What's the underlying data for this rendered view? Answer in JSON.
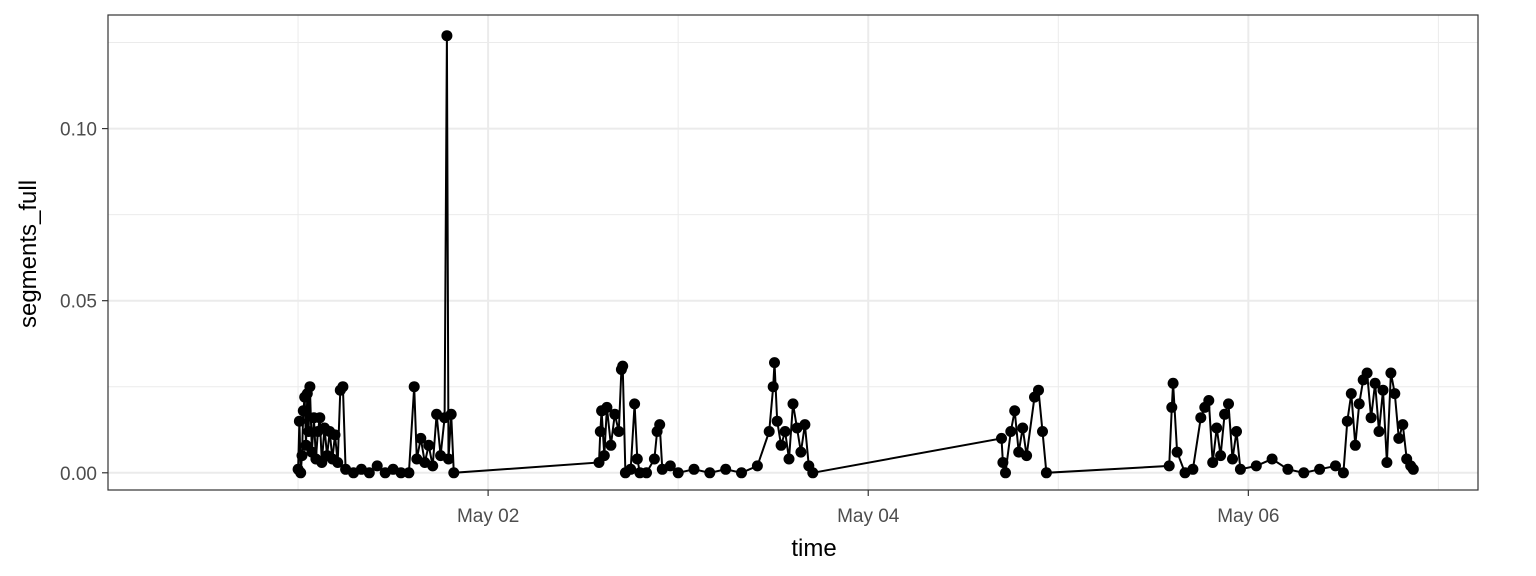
{
  "chart_data": {
    "type": "line",
    "title": "",
    "xlabel": "time",
    "ylabel": "segments_full",
    "x_type": "datetime",
    "xlim": [
      "2026-04-30T00:00",
      "2026-05-07T05:00"
    ],
    "ylim": [
      -0.005,
      0.133
    ],
    "x_ticks": [
      "2026-05-02T00:00",
      "2026-05-04T00:00",
      "2026-05-06T00:00"
    ],
    "x_tick_labels": [
      "May 02",
      "May 04",
      "May 06"
    ],
    "y_ticks": [
      0.0,
      0.05,
      0.1
    ],
    "y_tick_labels": [
      "0.00",
      "0.05",
      "0.10"
    ],
    "grid": true,
    "legend": "none",
    "series": [
      {
        "color": "#000000",
        "marker": "circle",
        "points": [
          [
            "2026-05-01T00:00",
            0.001
          ],
          [
            "2026-05-01T00:10",
            0.015
          ],
          [
            "2026-05-01T00:20",
            0.0
          ],
          [
            "2026-05-01T00:30",
            0.005
          ],
          [
            "2026-05-01T00:40",
            0.018
          ],
          [
            "2026-05-01T00:50",
            0.022
          ],
          [
            "2026-05-01T01:00",
            0.008
          ],
          [
            "2026-05-01T01:10",
            0.023
          ],
          [
            "2026-05-01T01:20",
            0.012
          ],
          [
            "2026-05-01T01:30",
            0.025
          ],
          [
            "2026-05-01T01:45",
            0.006
          ],
          [
            "2026-05-01T02:00",
            0.016
          ],
          [
            "2026-05-01T02:15",
            0.004
          ],
          [
            "2026-05-01T02:30",
            0.012
          ],
          [
            "2026-05-01T02:45",
            0.016
          ],
          [
            "2026-05-01T03:00",
            0.003
          ],
          [
            "2026-05-01T03:20",
            0.013
          ],
          [
            "2026-05-01T03:40",
            0.005
          ],
          [
            "2026-05-01T04:00",
            0.012
          ],
          [
            "2026-05-01T04:20",
            0.004
          ],
          [
            "2026-05-01T04:40",
            0.011
          ],
          [
            "2026-05-01T05:00",
            0.003
          ],
          [
            "2026-05-01T05:20",
            0.024
          ],
          [
            "2026-05-01T05:40",
            0.025
          ],
          [
            "2026-05-01T06:00",
            0.001
          ],
          [
            "2026-05-01T07:00",
            0.0
          ],
          [
            "2026-05-01T08:00",
            0.001
          ],
          [
            "2026-05-01T09:00",
            0.0
          ],
          [
            "2026-05-01T10:00",
            0.002
          ],
          [
            "2026-05-01T11:00",
            0.0
          ],
          [
            "2026-05-01T12:00",
            0.001
          ],
          [
            "2026-05-01T13:00",
            0.0
          ],
          [
            "2026-05-01T14:00",
            0.0
          ],
          [
            "2026-05-01T14:40",
            0.025
          ],
          [
            "2026-05-01T15:00",
            0.004
          ],
          [
            "2026-05-01T15:30",
            0.01
          ],
          [
            "2026-05-01T16:00",
            0.003
          ],
          [
            "2026-05-01T16:30",
            0.008
          ],
          [
            "2026-05-01T17:00",
            0.002
          ],
          [
            "2026-05-01T17:30",
            0.017
          ],
          [
            "2026-05-01T18:00",
            0.005
          ],
          [
            "2026-05-01T18:30",
            0.016
          ],
          [
            "2026-05-01T18:48",
            0.127
          ],
          [
            "2026-05-01T19:00",
            0.004
          ],
          [
            "2026-05-01T19:20",
            0.017
          ],
          [
            "2026-05-01T19:40",
            0.0
          ],
          [
            "2026-05-02T14:00",
            0.003
          ],
          [
            "2026-05-02T14:10",
            0.012
          ],
          [
            "2026-05-02T14:20",
            0.018
          ],
          [
            "2026-05-02T14:40",
            0.005
          ],
          [
            "2026-05-02T15:00",
            0.019
          ],
          [
            "2026-05-02T15:30",
            0.008
          ],
          [
            "2026-05-02T16:00",
            0.017
          ],
          [
            "2026-05-02T16:30",
            0.012
          ],
          [
            "2026-05-02T16:50",
            0.03
          ],
          [
            "2026-05-02T17:00",
            0.031
          ],
          [
            "2026-05-02T17:20",
            0.0
          ],
          [
            "2026-05-02T18:00",
            0.001
          ],
          [
            "2026-05-02T18:30",
            0.02
          ],
          [
            "2026-05-02T18:50",
            0.004
          ],
          [
            "2026-05-02T19:10",
            0.0
          ],
          [
            "2026-05-02T20:00",
            0.0
          ],
          [
            "2026-05-02T21:00",
            0.004
          ],
          [
            "2026-05-02T21:20",
            0.012
          ],
          [
            "2026-05-02T21:40",
            0.014
          ],
          [
            "2026-05-02T22:00",
            0.001
          ],
          [
            "2026-05-02T23:00",
            0.002
          ],
          [
            "2026-05-03T00:00",
            0.0
          ],
          [
            "2026-05-03T02:00",
            0.001
          ],
          [
            "2026-05-03T04:00",
            0.0
          ],
          [
            "2026-05-03T06:00",
            0.001
          ],
          [
            "2026-05-03T08:00",
            0.0
          ],
          [
            "2026-05-03T10:00",
            0.002
          ],
          [
            "2026-05-03T11:30",
            0.012
          ],
          [
            "2026-05-03T12:00",
            0.025
          ],
          [
            "2026-05-03T12:10",
            0.032
          ],
          [
            "2026-05-03T12:30",
            0.015
          ],
          [
            "2026-05-03T13:00",
            0.008
          ],
          [
            "2026-05-03T13:30",
            0.012
          ],
          [
            "2026-05-03T14:00",
            0.004
          ],
          [
            "2026-05-03T14:30",
            0.02
          ],
          [
            "2026-05-03T15:00",
            0.013
          ],
          [
            "2026-05-03T15:30",
            0.006
          ],
          [
            "2026-05-03T16:00",
            0.014
          ],
          [
            "2026-05-03T16:30",
            0.002
          ],
          [
            "2026-05-03T17:00",
            0.0
          ],
          [
            "2026-05-04T16:50",
            0.01
          ],
          [
            "2026-05-04T17:00",
            0.003
          ],
          [
            "2026-05-04T17:20",
            0.0
          ],
          [
            "2026-05-04T18:00",
            0.012
          ],
          [
            "2026-05-04T18:30",
            0.018
          ],
          [
            "2026-05-04T19:00",
            0.006
          ],
          [
            "2026-05-04T19:30",
            0.013
          ],
          [
            "2026-05-04T20:00",
            0.005
          ],
          [
            "2026-05-04T21:00",
            0.022
          ],
          [
            "2026-05-04T21:30",
            0.024
          ],
          [
            "2026-05-04T22:00",
            0.012
          ],
          [
            "2026-05-04T22:30",
            0.0
          ],
          [
            "2026-05-05T14:00",
            0.002
          ],
          [
            "2026-05-05T14:20",
            0.019
          ],
          [
            "2026-05-05T14:30",
            0.026
          ],
          [
            "2026-05-05T15:00",
            0.006
          ],
          [
            "2026-05-05T16:00",
            0.0
          ],
          [
            "2026-05-05T17:00",
            0.001
          ],
          [
            "2026-05-05T18:00",
            0.016
          ],
          [
            "2026-05-05T18:30",
            0.019
          ],
          [
            "2026-05-05T19:00",
            0.021
          ],
          [
            "2026-05-05T19:30",
            0.003
          ],
          [
            "2026-05-05T20:00",
            0.013
          ],
          [
            "2026-05-05T20:30",
            0.005
          ],
          [
            "2026-05-05T21:00",
            0.017
          ],
          [
            "2026-05-05T21:30",
            0.02
          ],
          [
            "2026-05-05T22:00",
            0.004
          ],
          [
            "2026-05-05T22:30",
            0.012
          ],
          [
            "2026-05-05T23:00",
            0.001
          ],
          [
            "2026-05-06T01:00",
            0.002
          ],
          [
            "2026-05-06T03:00",
            0.004
          ],
          [
            "2026-05-06T05:00",
            0.001
          ],
          [
            "2026-05-06T07:00",
            0.0
          ],
          [
            "2026-05-06T09:00",
            0.001
          ],
          [
            "2026-05-06T11:00",
            0.002
          ],
          [
            "2026-05-06T12:00",
            0.0
          ],
          [
            "2026-05-06T12:30",
            0.015
          ],
          [
            "2026-05-06T13:00",
            0.023
          ],
          [
            "2026-05-06T13:30",
            0.008
          ],
          [
            "2026-05-06T14:00",
            0.02
          ],
          [
            "2026-05-06T14:30",
            0.027
          ],
          [
            "2026-05-06T15:00",
            0.029
          ],
          [
            "2026-05-06T15:30",
            0.016
          ],
          [
            "2026-05-06T16:00",
            0.026
          ],
          [
            "2026-05-06T16:30",
            0.012
          ],
          [
            "2026-05-06T17:00",
            0.024
          ],
          [
            "2026-05-06T17:30",
            0.003
          ],
          [
            "2026-05-06T18:00",
            0.029
          ],
          [
            "2026-05-06T18:30",
            0.023
          ],
          [
            "2026-05-06T19:00",
            0.01
          ],
          [
            "2026-05-06T19:30",
            0.014
          ],
          [
            "2026-05-06T20:00",
            0.004
          ],
          [
            "2026-05-06T20:30",
            0.002
          ],
          [
            "2026-05-06T20:50",
            0.001
          ]
        ]
      }
    ]
  }
}
